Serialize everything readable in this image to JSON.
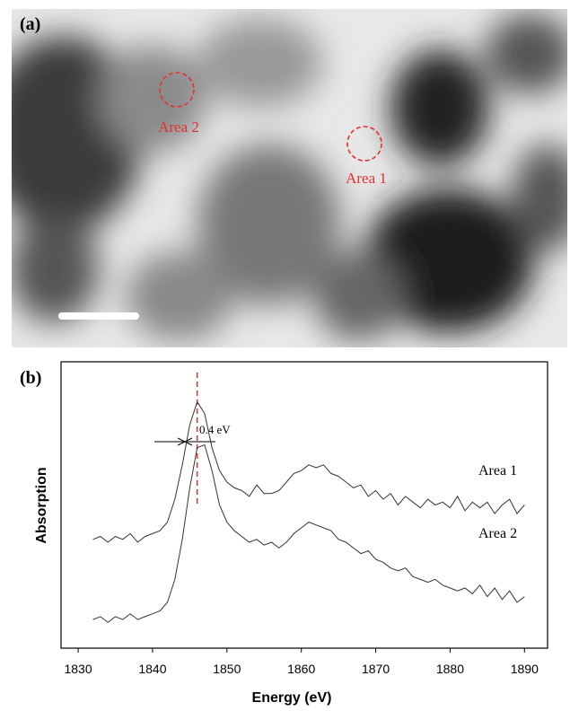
{
  "panel_a": {
    "label": "(a)",
    "annotations": [
      "Area 2",
      "Area 1"
    ]
  },
  "chart_data": {
    "type": "line",
    "panel_label": "(b)",
    "xlabel": "Energy (eV)",
    "ylabel": "Absorption",
    "xlim": [
      1827.7,
      1893.1
    ],
    "xticks": [
      1830,
      1840,
      1850,
      1860,
      1870,
      1880,
      1890
    ],
    "ylim": [
      0,
      100
    ],
    "annotation": "0.4 eV",
    "reference_line_x": 1846,
    "x": [
      1832,
      1833,
      1834,
      1835,
      1836,
      1837,
      1838,
      1839,
      1840,
      1841,
      1842,
      1843,
      1844,
      1845,
      1846,
      1847,
      1848,
      1849,
      1850,
      1851,
      1852,
      1853,
      1854,
      1855,
      1856,
      1857,
      1858,
      1859,
      1860,
      1861,
      1862,
      1863,
      1864,
      1865,
      1866,
      1867,
      1868,
      1869,
      1870,
      1871,
      1872,
      1873,
      1874,
      1875,
      1876,
      1877,
      1878,
      1879,
      1880,
      1881,
      1882,
      1883,
      1884,
      1885,
      1886,
      1887,
      1888,
      1889,
      1890
    ],
    "series": [
      {
        "name": "Area 1",
        "color": "#333333",
        "values": [
          38,
          39,
          37,
          39,
          38,
          40,
          37,
          39,
          40,
          41,
          44,
          52,
          64,
          78,
          86,
          82,
          70,
          62,
          58,
          56,
          55,
          53,
          57,
          54,
          54,
          55,
          58,
          61,
          62,
          64,
          63,
          64,
          61,
          60,
          58,
          56,
          57,
          53,
          55,
          52,
          54,
          50,
          53,
          51,
          49,
          52,
          50,
          51,
          49,
          53,
          48,
          51,
          49,
          51,
          47,
          50,
          52,
          47,
          50
        ]
      },
      {
        "name": "Area 2",
        "color": "#333333",
        "values": [
          10,
          11,
          9,
          11,
          10,
          12,
          10,
          11,
          12,
          13,
          16,
          24,
          38,
          56,
          70,
          71,
          62,
          50,
          44,
          41,
          39,
          37,
          38,
          36,
          37,
          35,
          37,
          40,
          42,
          44,
          43,
          42,
          41,
          38,
          37,
          35,
          33,
          34,
          31,
          30,
          28,
          27,
          28,
          25,
          24,
          23,
          24,
          22,
          21,
          20,
          21,
          19,
          22,
          18,
          21,
          17,
          20,
          16,
          18
        ]
      }
    ]
  }
}
